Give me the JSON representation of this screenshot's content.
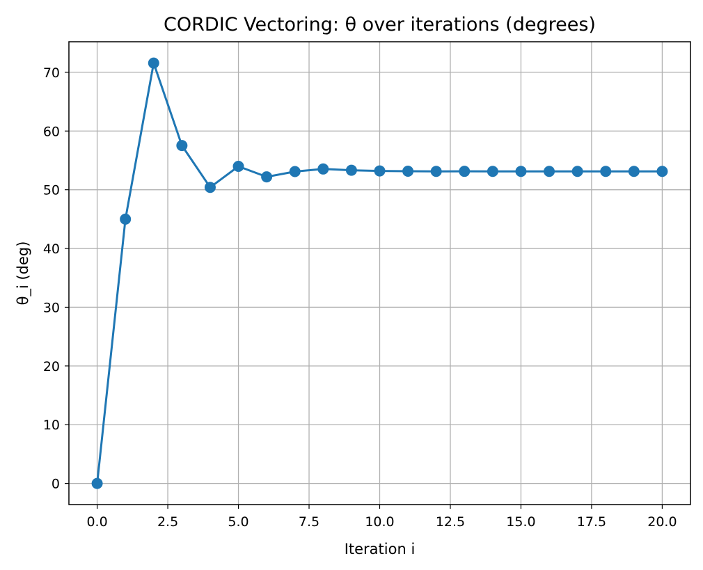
{
  "chart_data": {
    "type": "line",
    "title": "CORDIC Vectoring: θ over iterations (degrees)",
    "xlabel": "Iteration i",
    "ylabel": "θ_i (deg)",
    "xlim": [
      -1,
      21
    ],
    "ylim": [
      -3.6,
      75.2
    ],
    "x_ticks": [
      0.0,
      2.5,
      5.0,
      7.5,
      10.0,
      12.5,
      15.0,
      17.5,
      20.0
    ],
    "x_tick_labels": [
      "0.0",
      "2.5",
      "5.0",
      "7.5",
      "10.0",
      "12.5",
      "15.0",
      "17.5",
      "20.0"
    ],
    "y_ticks": [
      0,
      10,
      20,
      30,
      40,
      50,
      60,
      70
    ],
    "y_tick_labels": [
      "0",
      "10",
      "20",
      "30",
      "40",
      "50",
      "60",
      "70"
    ],
    "grid": true,
    "series": [
      {
        "color": "#1f77b4",
        "marker": "circle",
        "x": [
          0,
          1,
          2,
          3,
          4,
          5,
          6,
          7,
          8,
          9,
          10,
          11,
          12,
          13,
          14,
          15,
          16,
          17,
          18,
          19,
          20
        ],
        "values": [
          0.0,
          45.0,
          71.57,
          57.53,
          50.41,
          53.99,
          52.2,
          53.1,
          53.54,
          53.32,
          53.21,
          53.16,
          53.13,
          53.14,
          53.13,
          53.13,
          53.13,
          53.13,
          53.13,
          53.13,
          53.13
        ]
      }
    ]
  }
}
